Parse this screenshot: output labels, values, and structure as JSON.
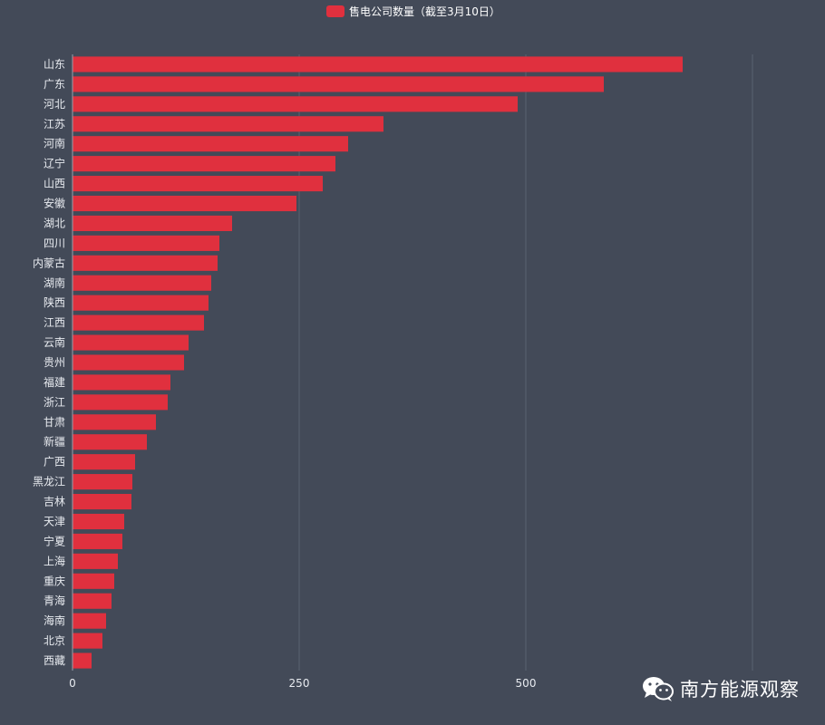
{
  "chart_data": {
    "type": "bar",
    "orientation": "horizontal",
    "series_name": "售电公司数量（截至3月10日）",
    "categories": [
      "山东",
      "广东",
      "河北",
      "江苏",
      "河南",
      "辽宁",
      "山西",
      "安徽",
      "湖北",
      "四川",
      "内蒙古",
      "湖南",
      "陕西",
      "江西",
      "云南",
      "贵州",
      "福建",
      "浙江",
      "甘肃",
      "新疆",
      "广西",
      "黑龙江",
      "吉林",
      "天津",
      "宁夏",
      "上海",
      "重庆",
      "青海",
      "海南",
      "北京",
      "西藏"
    ],
    "values": [
      673,
      586,
      491,
      343,
      304,
      290,
      276,
      247,
      176,
      162,
      160,
      153,
      150,
      145,
      128,
      123,
      108,
      105,
      92,
      82,
      69,
      66,
      65,
      57,
      55,
      50,
      46,
      43,
      37,
      33,
      21
    ],
    "xaxis": {
      "min": 0,
      "max": 750,
      "ticks": [
        0,
        250,
        500,
        750
      ],
      "tick_labels": [
        "0",
        "250",
        "500"
      ]
    },
    "gridlines": true,
    "legend_position": "top-center",
    "colors": {
      "bar": "#e0303e",
      "background": "#434a58",
      "grid": "#5a6170",
      "axis": "#9aa0ab",
      "text": "#e8ebf0"
    }
  },
  "watermark": {
    "text": "南方能源观察",
    "icon": "wechat-icon"
  }
}
